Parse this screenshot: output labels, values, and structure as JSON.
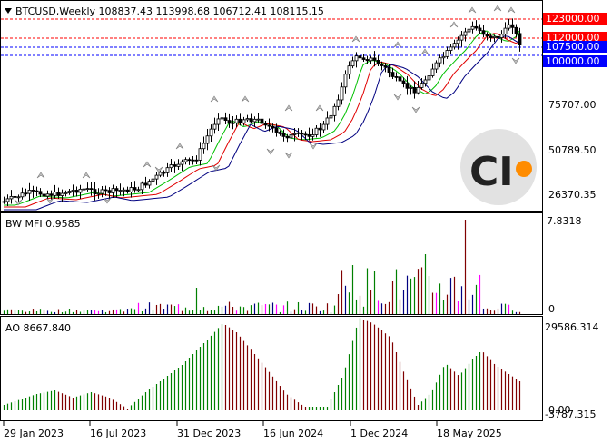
{
  "header": {
    "symbol_line": "BTCUSD,Weekly  108837.43 113998.68 106712.41 108115.15"
  },
  "price_panel": {
    "axis_labels": [
      "75707.00",
      "50789.50",
      "26370.35"
    ],
    "levels": [
      {
        "value": "123000.00",
        "bg": "#ff0000",
        "line": "#ff0000",
        "text_color": "#ffffff"
      },
      {
        "value": "112000.00",
        "bg": "#ff0000",
        "line": "#ff0000",
        "text_color": "#ffffff"
      },
      {
        "value": "107500.00",
        "bg": "#0000ff",
        "line": "#0000ff",
        "text_color": "#ffffff"
      },
      {
        "value": "100000.00",
        "bg": "#0000ff",
        "line": "#0000ff",
        "text_color": "#ffffff"
      }
    ]
  },
  "mfi_panel": {
    "title": "BW MFI 0.9585",
    "axis_top": "7.8318",
    "axis_bottom": "0"
  },
  "ao_panel": {
    "title": "AO 8667.840",
    "axis_top": "29586.314",
    "axis_mid": "0.00",
    "axis_bottom": "-3787.315"
  },
  "time_axis": [
    "29 Jan 2023",
    "16 Jul 2023",
    "31 Dec 2023",
    "16 Jun 2024",
    "1 Dec 2024",
    "18 May 2025"
  ],
  "logo": {
    "text": "CI",
    "dot_color": "#ff8c00"
  },
  "colors": {
    "up": "#008000",
    "down": "#800000",
    "neutral": "#000080",
    "grid": "#c0c0c0",
    "ma_green": "#00c000",
    "ma_red": "#e00000",
    "ma_blue": "#000080"
  }
}
